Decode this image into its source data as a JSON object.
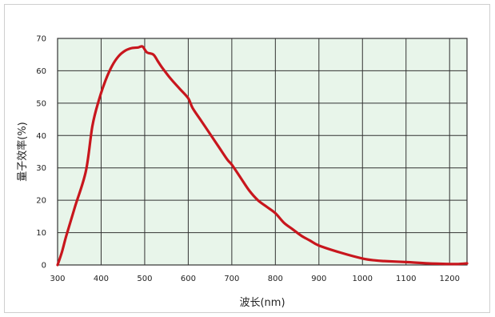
{
  "chart_data": {
    "type": "line",
    "xlabel": "波长(nm)",
    "ylabel": "量子效率(%)",
    "xlim": [
      300,
      1240
    ],
    "ylim": [
      0,
      70
    ],
    "xticks": [
      300,
      400,
      500,
      600,
      700,
      800,
      900,
      1000,
      1100,
      1200
    ],
    "yticks": [
      0,
      10,
      20,
      30,
      40,
      50,
      60,
      70
    ],
    "grid": true,
    "colors": {
      "plot_bg": "#e8f5ea",
      "grid": "#333333",
      "line": "#c8161d"
    },
    "series": [
      {
        "x": [
          300,
          310,
          320,
          340,
          365,
          380,
          395,
          410,
          425,
          440,
          455,
          470,
          485,
          495,
          505,
          520,
          530,
          540,
          560,
          580,
          600,
          610,
          630,
          650,
          670,
          690,
          700,
          720,
          740,
          760,
          780,
          800,
          820,
          840,
          860,
          880,
          900,
          950,
          1000,
          1030,
          1050,
          1100,
          1150,
          1200,
          1220,
          1240
        ],
        "y": [
          0,
          4,
          9,
          18,
          29,
          43,
          51,
          57,
          61.5,
          64.5,
          66.2,
          67,
          67.2,
          67.5,
          65.7,
          65.0,
          63.0,
          61.0,
          57.5,
          54.5,
          51.5,
          48.5,
          44.5,
          40.5,
          36.5,
          32.5,
          31.0,
          27,
          23,
          20,
          18,
          16,
          13,
          11,
          9,
          7.5,
          6,
          3.8,
          2.0,
          1.4,
          1.2,
          0.9,
          0.5,
          0.3,
          0.3,
          0.5
        ]
      }
    ]
  }
}
